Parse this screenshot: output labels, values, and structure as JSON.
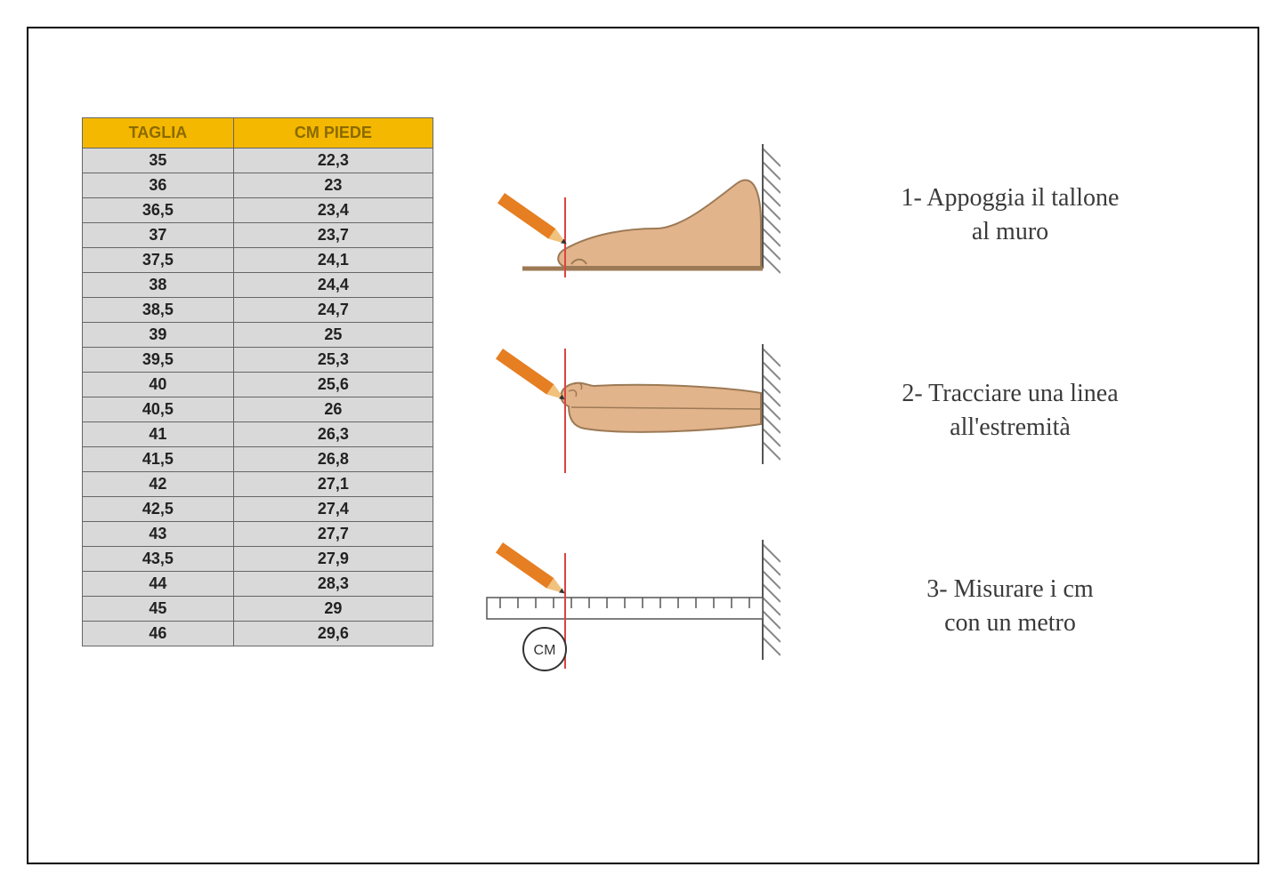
{
  "table": {
    "columns": [
      "TAGLIA",
      "CM PIEDE"
    ],
    "header_bg": "#f5b800",
    "header_fg": "#8a6a00",
    "cell_bg": "#d9d9d9",
    "cell_fg": "#222222",
    "border_color": "#666666",
    "font_size_pt": 14,
    "rows": [
      [
        "35",
        "22,3"
      ],
      [
        "36",
        "23"
      ],
      [
        "36,5",
        "23,4"
      ],
      [
        "37",
        "23,7"
      ],
      [
        "37,5",
        "24,1"
      ],
      [
        "38",
        "24,4"
      ],
      [
        "38,5",
        "24,7"
      ],
      [
        "39",
        "25"
      ],
      [
        "39,5",
        "25,3"
      ],
      [
        "40",
        "25,6"
      ],
      [
        "40,5",
        "26"
      ],
      [
        "41",
        "26,3"
      ],
      [
        "41,5",
        "26,8"
      ],
      [
        "42",
        "27,1"
      ],
      [
        "42,5",
        "27,4"
      ],
      [
        "43",
        "27,7"
      ],
      [
        "43,5",
        "27,9"
      ],
      [
        "44",
        "28,3"
      ],
      [
        "45",
        "29"
      ],
      [
        "46",
        "29,6"
      ]
    ]
  },
  "steps": [
    {
      "label": "1- Appoggia il tallone\nal muro"
    },
    {
      "label": "2- Tracciare una linea\nall'estremità"
    },
    {
      "label": "3- Misurare i cm\ncon un metro"
    }
  ],
  "illustration_colors": {
    "skin": "#e2b48c",
    "skin_outline": "#9c7a55",
    "pencil_body": "#e67e22",
    "pencil_tip_wood": "#f1c27d",
    "pencil_tip_lead": "#333333",
    "guide_line": "#d44",
    "floor": "#9c7a55",
    "wall_hatch": "#888888",
    "ruler_fill": "#ffffff",
    "ruler_border": "#555555",
    "cm_label": "CM"
  },
  "styling": {
    "frame_border_color": "#000000",
    "page_bg": "#ffffff",
    "step_text_font": "Georgia, serif",
    "step_text_size_pt": 21,
    "step_text_color": "#3a3a3a"
  }
}
